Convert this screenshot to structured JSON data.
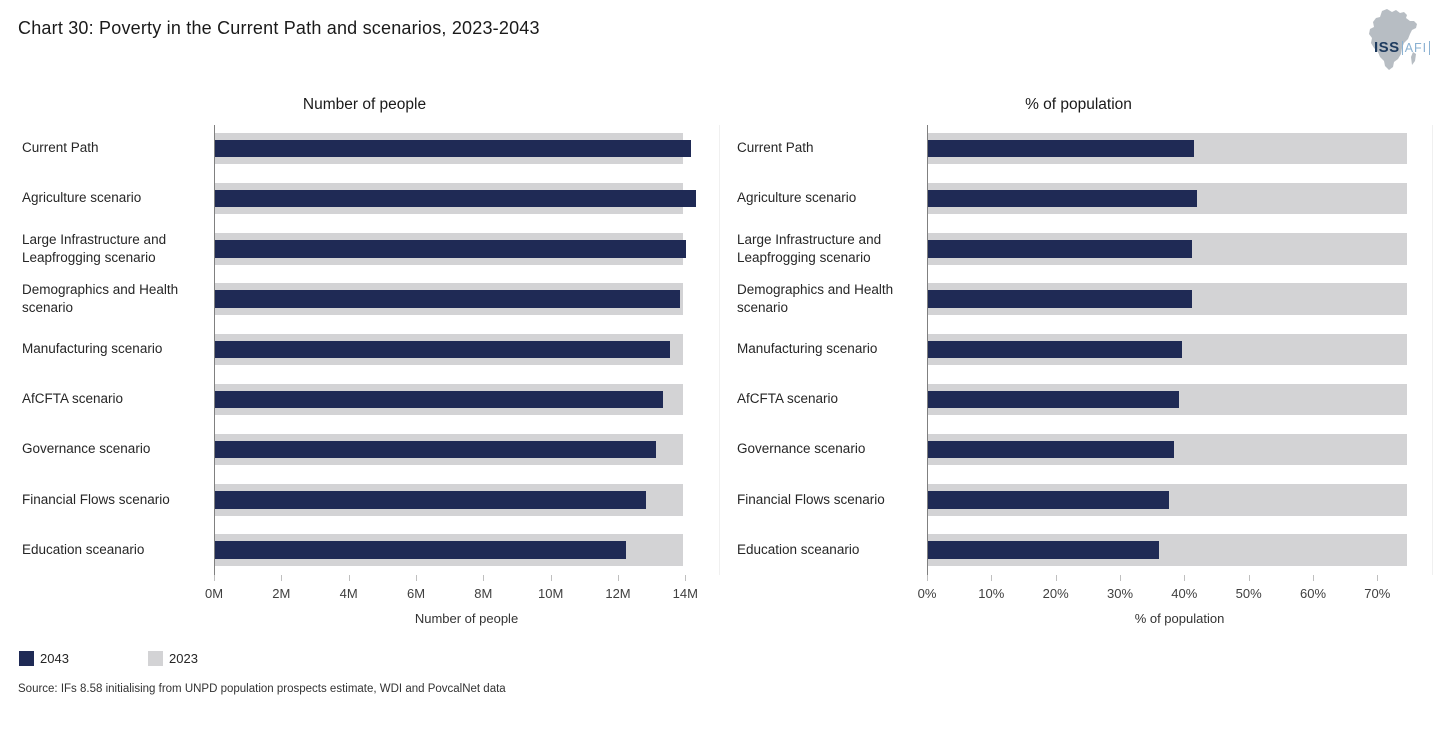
{
  "header": {
    "title": "Chart 30: Poverty in the Current Path and scenarios, 2023-2043"
  },
  "logo": {
    "org": "ISS",
    "unit": "AFI"
  },
  "colors": {
    "bar_2043": "#1f2a55",
    "bar_2023": "#d3d3d5",
    "axis_line": "#808080",
    "tick": "#bfbfbf",
    "plot_border": "#f0f0f0",
    "logo_map": "#b7bdc3",
    "logo_org": "#1d3a5e",
    "logo_unit": "#8ab1d2"
  },
  "legend": {
    "items": [
      {
        "label": "2043",
        "color": "#1f2a55"
      },
      {
        "label": "2023",
        "color": "#d3d3d5"
      }
    ]
  },
  "source": "Source: IFs 8.58 initialising from UNPD population prospects estimate, WDI and PovcalNet data",
  "chart_data": [
    {
      "type": "bar",
      "orientation": "horizontal",
      "title": "Number of people",
      "xlabel": "Number of people",
      "categories": [
        "Current Path",
        "Agriculture scenario",
        "Large Infrastructure and Leapfrogging scenario",
        "Demographics and Health scenario",
        "Manufacturing scenario",
        "AfCFTA scenario",
        "Governance scenario",
        "Financial Flows scenario",
        "Education sceanario"
      ],
      "series": [
        {
          "name": "2043",
          "color": "#1f2a55",
          "values": [
            14.15,
            14.3,
            14.0,
            13.8,
            13.5,
            13.3,
            13.1,
            12.8,
            12.2
          ]
        },
        {
          "name": "2023",
          "color": "#d3d3d5",
          "values": [
            13.9,
            13.9,
            13.9,
            13.9,
            13.9,
            13.9,
            13.9,
            13.9,
            13.9
          ]
        }
      ],
      "ticks": [
        "0M",
        "2M",
        "4M",
        "6M",
        "8M",
        "10M",
        "12M",
        "14M"
      ],
      "tick_values": [
        0,
        2,
        4,
        6,
        8,
        10,
        12,
        14
      ],
      "xlim": [
        0,
        15
      ],
      "grid": false,
      "legend_position": "bottom-left"
    },
    {
      "type": "bar",
      "orientation": "horizontal",
      "title": "% of population",
      "xlabel": "% of population",
      "categories": [
        "Current Path",
        "Agriculture scenario",
        "Large Infrastructure and Leapfrogging scenario",
        "Demographics and Health scenario",
        "Manufacturing scenario",
        "AfCFTA scenario",
        "Governance scenario",
        "Financial Flows scenario",
        "Education sceanario"
      ],
      "series": [
        {
          "name": "2043",
          "color": "#1f2a55",
          "values": [
            41.3,
            41.8,
            41.0,
            41.0,
            39.5,
            39.0,
            38.2,
            37.5,
            35.9
          ]
        },
        {
          "name": "2023",
          "color": "#d3d3d5",
          "values": [
            74.5,
            74.5,
            74.5,
            74.5,
            74.5,
            74.5,
            74.5,
            74.5,
            74.5
          ]
        }
      ],
      "ticks": [
        "0%",
        "10%",
        "20%",
        "30%",
        "40%",
        "50%",
        "60%",
        "70%"
      ],
      "tick_values": [
        0,
        10,
        20,
        30,
        40,
        50,
        60,
        70
      ],
      "xlim": [
        0,
        78.5
      ],
      "grid": false,
      "legend_position": "bottom-left"
    }
  ]
}
